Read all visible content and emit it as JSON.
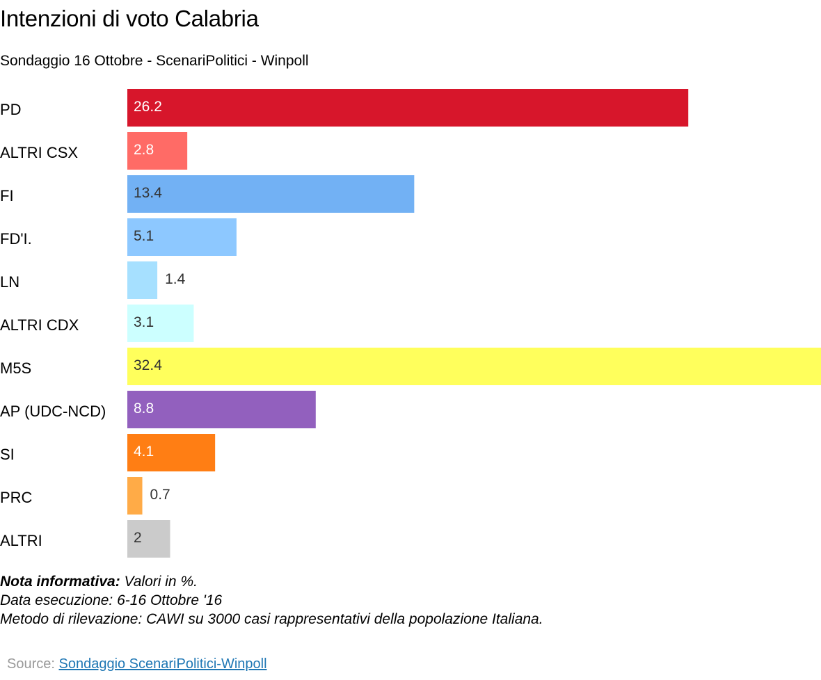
{
  "chart_data": {
    "type": "bar",
    "orientation": "horizontal",
    "title": "Intenzioni di voto Calabria",
    "subtitle": "Sondaggio 16 Ottobre - ScenariPolitici - Winpoll",
    "xlim": [
      0,
      32.4
    ],
    "grid": false,
    "legend": "none",
    "categories": [
      "PD",
      "ALTRI CSX",
      "FI",
      "FD'I.",
      "LN",
      "ALTRI CDX",
      "M5S",
      "AP (UDC-NCD)",
      "SI",
      "PRC",
      "ALTRI"
    ],
    "values": [
      26.2,
      2.8,
      13.4,
      5.1,
      1.4,
      3.1,
      32.4,
      8.8,
      4.1,
      0.7,
      2
    ],
    "value_labels": [
      "26.2",
      "2.8",
      "13.4",
      "5.1",
      "1.4",
      "3.1",
      "32.4",
      "8.8",
      "4.1",
      "0.7",
      "2"
    ],
    "colors": [
      "#d7162b",
      "#ff6b66",
      "#72b1f4",
      "#8dc8ff",
      "#a6e0ff",
      "#ccffff",
      "#ffff5c",
      "#9260be",
      "#ff7e14",
      "#ffab47",
      "#cbcbcb"
    ],
    "label_colors": [
      "#ffffff",
      "#ffffff",
      "#333333",
      "#333333",
      "#333333",
      "#333333",
      "#333333",
      "#ffffff",
      "#ffffff",
      "#333333",
      "#333333"
    ]
  },
  "notes": {
    "heading": "Nota informativa:",
    "line1_rest": " Valori in %.",
    "line2": "Data esecuzione: 6-16  Ottobre '16",
    "line3": "Metodo di rilevazione: CAWI su 3000 casi rappresentativi della popolazione Italiana."
  },
  "source": {
    "prefix": "Source: ",
    "link_text": "Sondaggio ScenariPolitici-Winpoll"
  }
}
